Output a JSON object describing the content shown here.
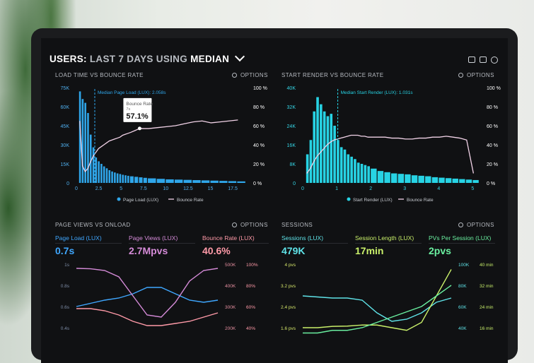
{
  "header": {
    "title_a": "USERS:",
    "title_b": "LAST 7 DAYS",
    "title_c": "USING",
    "title_d": "MEDIAN",
    "icons": [
      "monitor-icon",
      "image-icon",
      "help-icon"
    ]
  },
  "panels": {
    "load": {
      "title": "LOAD TIME VS BOUNCE RATE",
      "options": "OPTIONS",
      "marker": "Median Page Load (LUX): 2.058s",
      "tooltip_label": "Bounce Rate",
      "tooltip_sub": "7s",
      "tooltip_value": "57.1%",
      "legend": [
        "Page Load (LUX)",
        "Bounce Rate"
      ],
      "yleft": [
        "75K",
        "60K",
        "45K",
        "30K",
        "15K",
        "0"
      ],
      "yright": [
        "100 %",
        "80 %",
        "60 %",
        "40 %",
        "20 %",
        "0 %"
      ],
      "xticks": [
        "0",
        "2.5",
        "5",
        "7.5",
        "10",
        "12.5",
        "15",
        "17.5"
      ]
    },
    "render": {
      "title": "START RENDER VS BOUNCE RATE",
      "options": "OPTIONS",
      "marker": "Median Start Render (LUX): 1.031s",
      "legend": [
        "Start Render (LUX)",
        "Bounce Rate"
      ],
      "yleft": [
        "40K",
        "32K",
        "24K",
        "16K",
        "8K",
        "0"
      ],
      "yright": [
        "100 %",
        "80 %",
        "60 %",
        "40 %",
        "20 %",
        "0 %"
      ],
      "xticks": [
        "0",
        "1",
        "2",
        "3",
        "4",
        "5"
      ]
    },
    "pageviews": {
      "title": "PAGE VIEWS VS ONLOAD",
      "options": "OPTIONS",
      "metrics": [
        {
          "label": "Page Load (LUX)",
          "value": "0.7s",
          "color": "#3fa7ff"
        },
        {
          "label": "Page Views (LUX)",
          "value": "2.7Mpvs",
          "color": "#d58bd8"
        },
        {
          "label": "Bounce Rate (LUX)",
          "value": "40.6%",
          "color": "#ff9aa8"
        }
      ],
      "yleft": [
        "1s",
        "0.8s",
        "0.6s",
        "0.4s"
      ],
      "yright1": [
        "500K",
        "400K",
        "300K",
        "200K"
      ],
      "yright2": [
        "100%",
        "80%",
        "60%",
        "40%"
      ]
    },
    "sessions": {
      "title": "SESSIONS",
      "options": "OPTIONS",
      "metrics": [
        {
          "label": "Sessions (LUX)",
          "value": "479K",
          "color": "#5fe3e8"
        },
        {
          "label": "Session Length (LUX)",
          "value": "17min",
          "color": "#c9f06a"
        },
        {
          "label": "PVs Per Session (LUX)",
          "value": "2pvs",
          "color": "#6af0a0"
        }
      ],
      "yleft": [
        "4 pvs",
        "3.2 pvs",
        "2.4 pvs",
        "1.6 pvs"
      ],
      "yright1": [
        "100K",
        "80K",
        "60K",
        "40K"
      ],
      "yright2": [
        "40 min",
        "32 min",
        "24 min",
        "16 min"
      ]
    }
  },
  "chart_data": [
    {
      "type": "bar",
      "title": "LOAD TIME VS BOUNCE RATE",
      "x": [
        0.3,
        0.6,
        0.9,
        1.2,
        1.5,
        1.8,
        2.1,
        2.4,
        2.7,
        3.0,
        3.3,
        3.6,
        3.9,
        4.2,
        4.5,
        4.8,
        5.1,
        5.4,
        5.7,
        6.0,
        6.5,
        7,
        7.5,
        8,
        9,
        10,
        11,
        12,
        13,
        14,
        15,
        16,
        17,
        18
      ],
      "series": [
        {
          "name": "Page Load (LUX)",
          "values": [
            72000,
            66000,
            63000,
            55000,
            38000,
            28000,
            20000,
            17000,
            15000,
            13000,
            11500,
            10000,
            9000,
            8200,
            7500,
            7000,
            6400,
            6000,
            5600,
            5200,
            4800,
            4400,
            4000,
            3600,
            3200,
            2800,
            2600,
            2400,
            2200,
            2000,
            1800,
            1600,
            1400,
            1200
          ]
        },
        {
          "name": "Bounce Rate",
          "values": [
            65,
            18,
            12,
            15,
            22,
            28,
            32,
            36,
            38,
            40,
            42,
            44,
            45,
            46,
            47,
            48,
            50,
            51,
            52,
            53,
            55,
            57.1,
            57,
            57,
            58,
            59,
            60,
            62,
            64,
            65,
            63,
            64,
            65,
            66
          ]
        }
      ],
      "ylim": [
        0,
        75000
      ],
      "y2lim": [
        0,
        100
      ],
      "xlim": [
        0,
        19
      ]
    },
    {
      "type": "bar",
      "title": "START RENDER VS BOUNCE RATE",
      "x": [
        0.1,
        0.2,
        0.3,
        0.4,
        0.5,
        0.6,
        0.7,
        0.8,
        0.9,
        1.0,
        1.1,
        1.2,
        1.3,
        1.4,
        1.5,
        1.6,
        1.7,
        1.8,
        1.9,
        2.0,
        2.2,
        2.4,
        2.6,
        2.8,
        3.0,
        3.2,
        3.4,
        3.6,
        3.8,
        4.0,
        4.2,
        4.4,
        4.6,
        4.8,
        5.0
      ],
      "series": [
        {
          "name": "Start Render (LUX)",
          "values": [
            12000,
            18000,
            30000,
            36000,
            33000,
            30000,
            28000,
            29000,
            24000,
            18000,
            15000,
            14000,
            12000,
            11000,
            10000,
            8500,
            8000,
            7500,
            7000,
            6000,
            5000,
            4500,
            4000,
            3800,
            3600,
            3200,
            3000,
            2800,
            2400,
            2200,
            2000,
            1800,
            1600,
            1400,
            1200
          ]
        },
        {
          "name": "Bounce Rate",
          "values": [
            10,
            15,
            22,
            28,
            32,
            36,
            40,
            43,
            45,
            46,
            47,
            48,
            49,
            50,
            50,
            50,
            49,
            49,
            48,
            48,
            48,
            48,
            47,
            47,
            46,
            46,
            47,
            47,
            48,
            48,
            49,
            48,
            47,
            45,
            10
          ]
        }
      ],
      "ylim": [
        0,
        40000
      ],
      "y2lim": [
        0,
        100
      ],
      "xlim": [
        0,
        5.2
      ]
    },
    {
      "type": "line",
      "title": "PAGE VIEWS VS ONLOAD",
      "x": [
        0,
        1,
        2,
        3,
        4,
        5,
        6,
        7,
        8,
        9,
        10
      ],
      "series": [
        {
          "name": "Page Load (LUX)",
          "values": [
            0.6,
            0.63,
            0.66,
            0.68,
            0.72,
            0.78,
            0.78,
            0.72,
            0.66,
            0.64,
            0.66
          ]
        },
        {
          "name": "Page Views (LUX)",
          "values": [
            480,
            478,
            470,
            440,
            350,
            260,
            250,
            320,
            420,
            470,
            480
          ]
        },
        {
          "name": "Bounce Rate (LUX)",
          "values": [
            58,
            58,
            56,
            52,
            46,
            42,
            42,
            44,
            46,
            50,
            54
          ]
        }
      ]
    },
    {
      "type": "line",
      "title": "SESSIONS",
      "x": [
        0,
        1,
        2,
        3,
        4,
        5,
        6,
        7,
        8,
        9,
        10
      ],
      "series": [
        {
          "name": "Sessions (LUX)",
          "values": [
            70,
            69,
            68,
            68,
            66,
            54,
            46,
            48,
            54,
            64,
            68
          ]
        },
        {
          "name": "Session Length (LUX)",
          "values": [
            16,
            16,
            16.5,
            16.6,
            17,
            17,
            16,
            15,
            18,
            28,
            38
          ]
        },
        {
          "name": "PVs Per Session (LUX)",
          "values": [
            1.4,
            1.4,
            1.5,
            1.5,
            1.6,
            1.8,
            2.0,
            2.2,
            2.4,
            2.8,
            3.2
          ]
        }
      ]
    }
  ]
}
